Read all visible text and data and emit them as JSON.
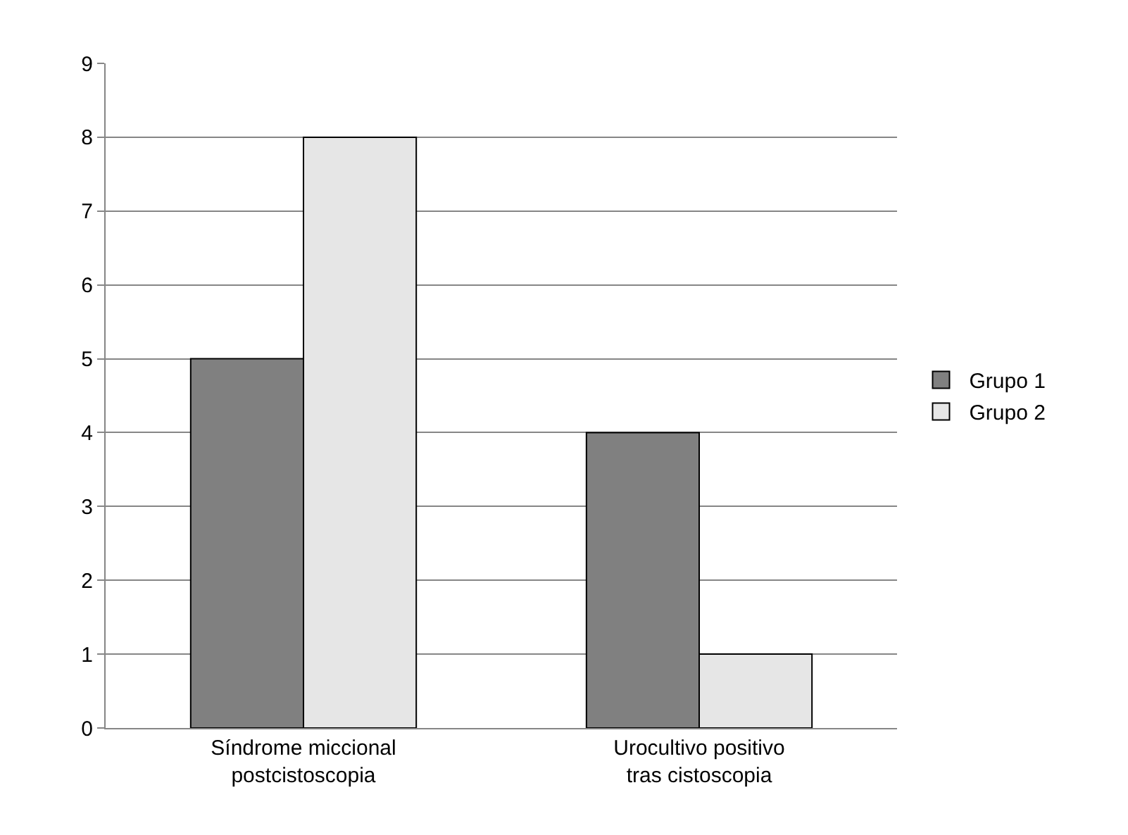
{
  "chart_data": {
    "type": "bar",
    "categories": [
      "Síndrome miccional\npostcistoscopia",
      "Urocultivo positivo\ntras cistoscopia"
    ],
    "series": [
      {
        "name": "Grupo 1",
        "color": "#808080",
        "values": [
          5,
          4
        ]
      },
      {
        "name": "Grupo 2",
        "color": "#e6e6e6",
        "values": [
          8,
          1
        ]
      }
    ],
    "ylim": [
      0,
      9
    ],
    "yticks": [
      0,
      1,
      2,
      3,
      4,
      5,
      6,
      7,
      8,
      9
    ],
    "grid": "y",
    "legend": "right"
  }
}
